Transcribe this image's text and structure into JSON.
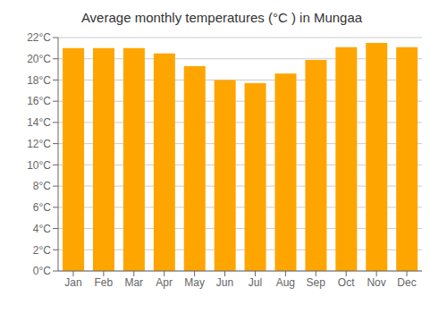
{
  "chart_data": {
    "type": "bar",
    "title": "Average monthly temperatures (°C ) in Mungaa",
    "categories": [
      "Jan",
      "Feb",
      "Mar",
      "Apr",
      "May",
      "Jun",
      "Jul",
      "Aug",
      "Sep",
      "Oct",
      "Nov",
      "Dec"
    ],
    "values": [
      21.0,
      21.0,
      21.0,
      20.5,
      19.3,
      18.0,
      17.7,
      18.6,
      19.9,
      21.1,
      21.5,
      21.1
    ],
    "color": "#FFA500",
    "ylim": [
      0,
      22
    ],
    "yticks": [
      {
        "value": 0,
        "label": "0°C"
      },
      {
        "value": 2,
        "label": "2°C"
      },
      {
        "value": 4,
        "label": "4°C"
      },
      {
        "value": 6,
        "label": "6°C"
      },
      {
        "value": 8,
        "label": "8°C"
      },
      {
        "value": 10,
        "label": "10°C"
      },
      {
        "value": 12,
        "label": "12°C"
      },
      {
        "value": 14,
        "label": "14°C"
      },
      {
        "value": 16,
        "label": "16°C"
      },
      {
        "value": 18,
        "label": "18°C"
      },
      {
        "value": 20,
        "label": "20°C"
      },
      {
        "value": 22,
        "label": "22°C"
      }
    ],
    "grid": true
  }
}
